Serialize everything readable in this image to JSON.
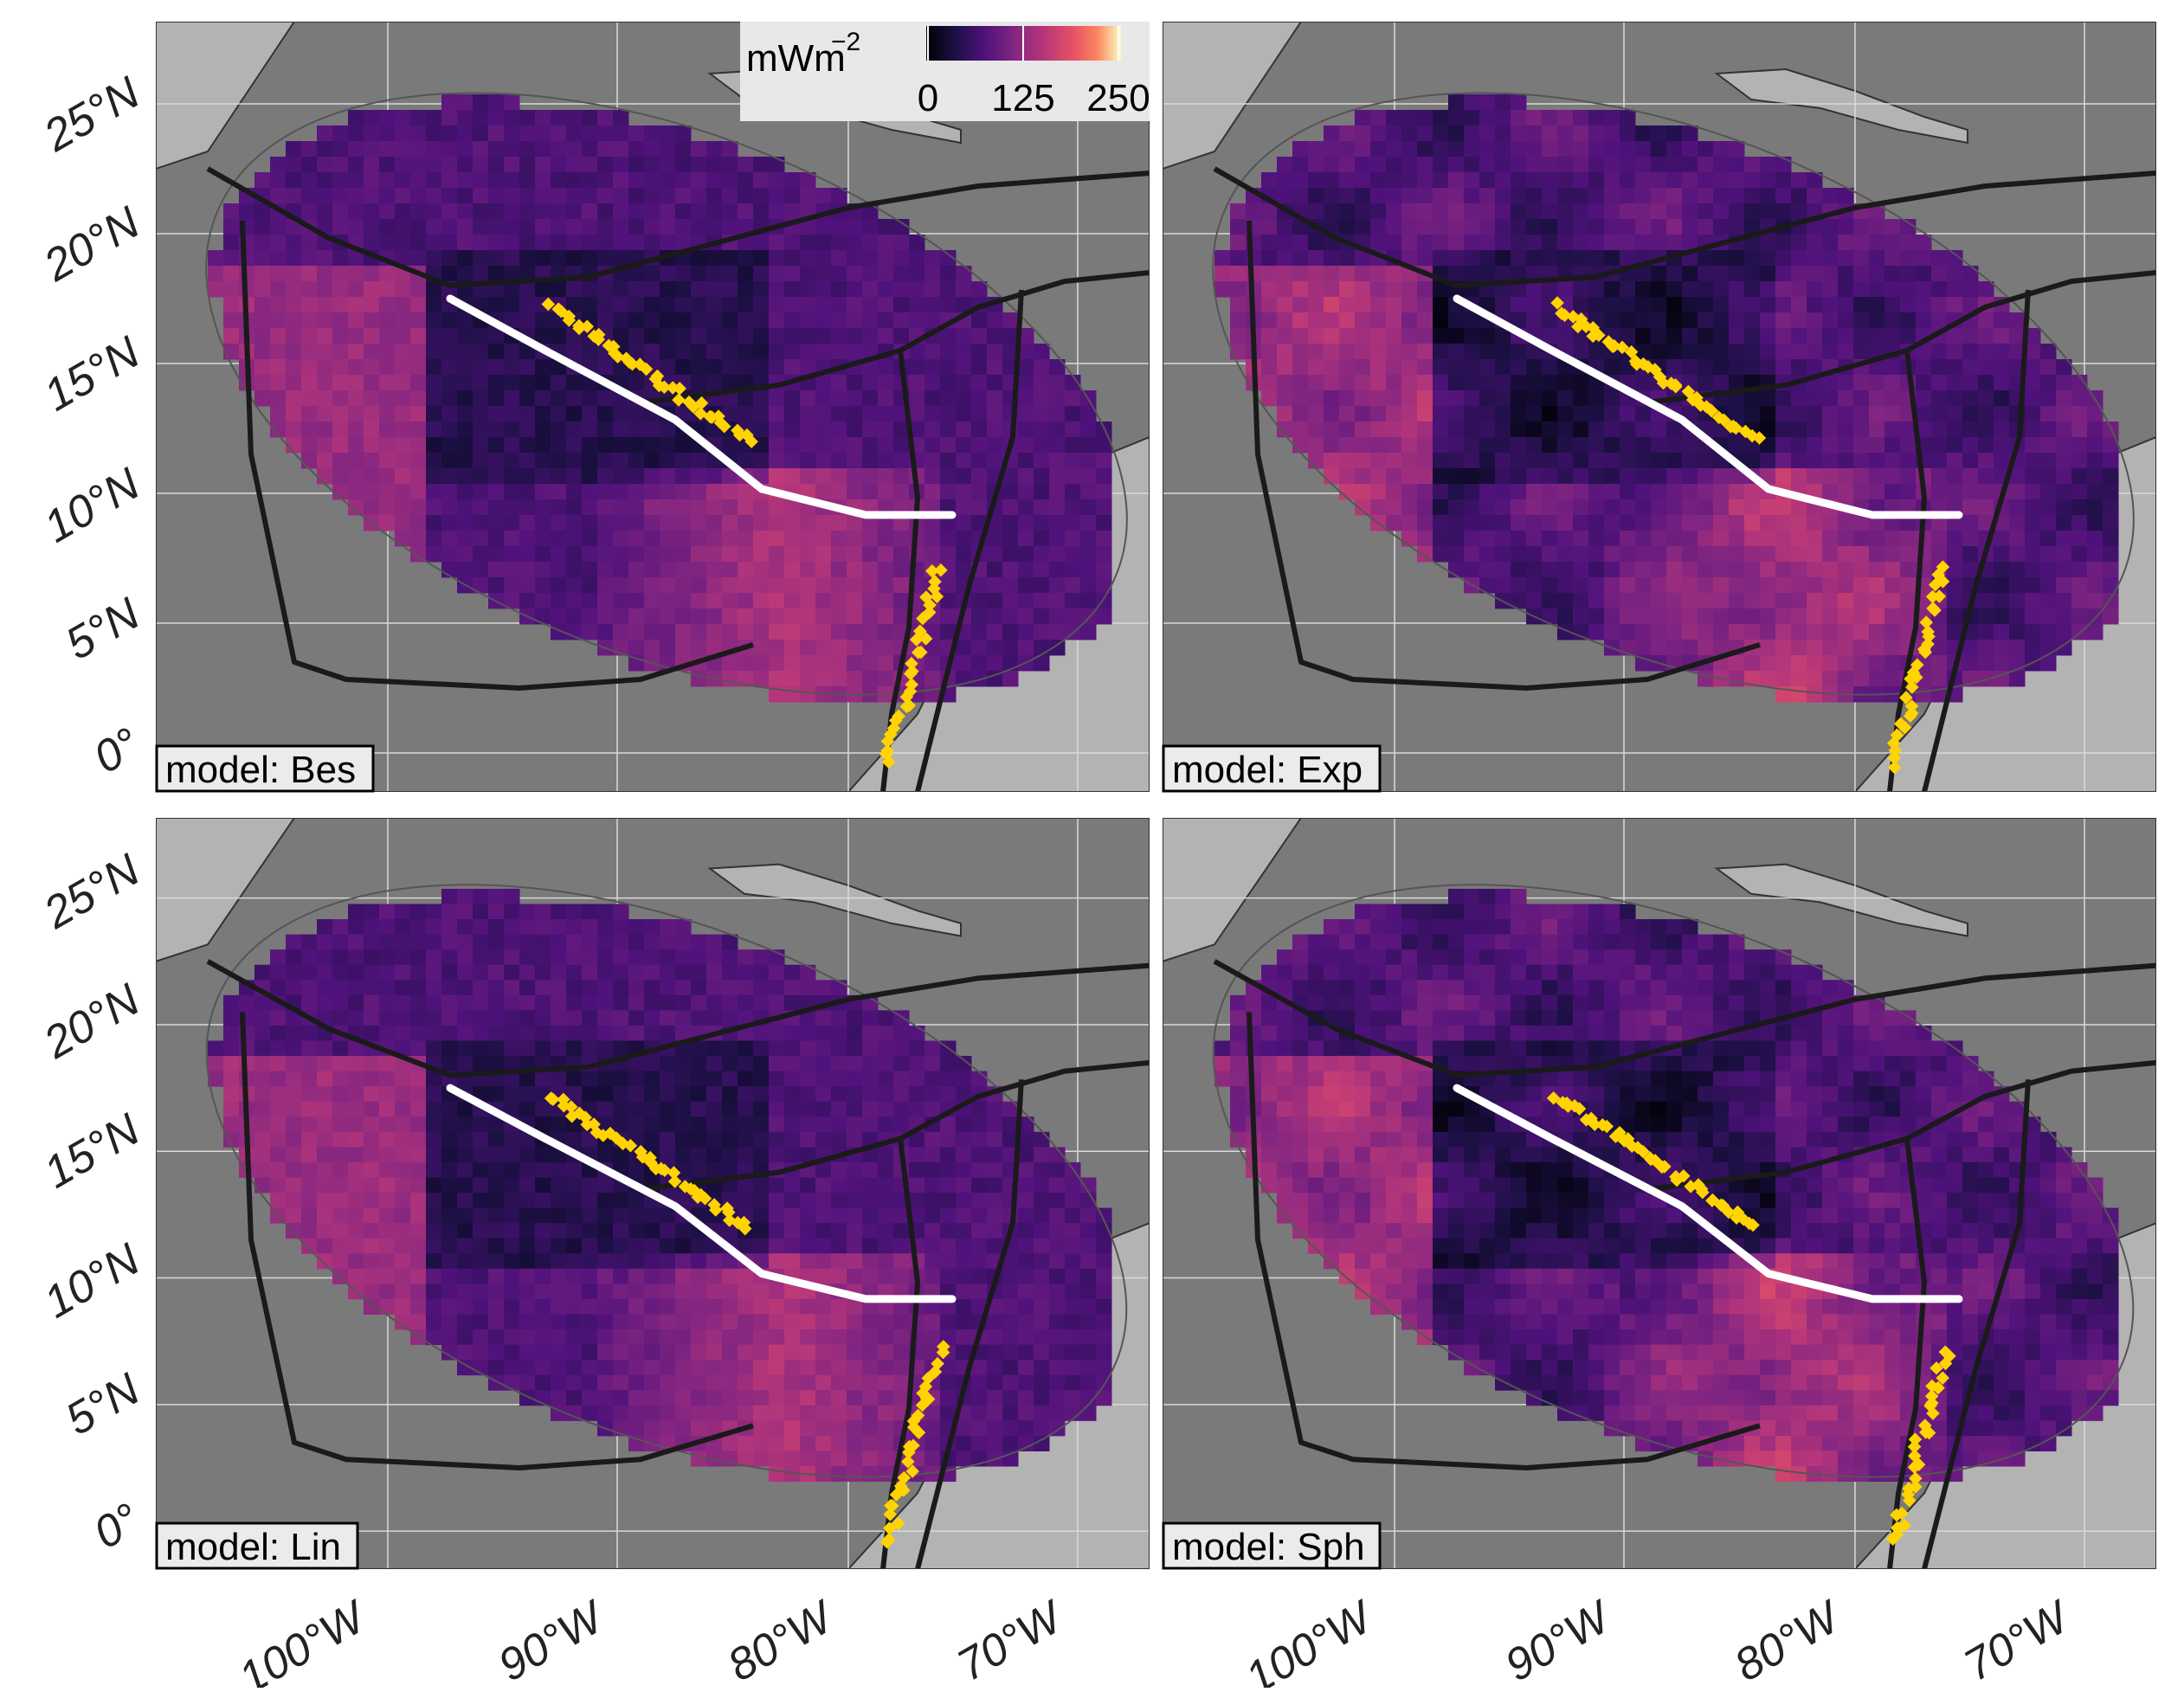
{
  "figure": {
    "y_axis_labels": [
      "25°N",
      "20°N",
      "15°N",
      "10°N",
      "5°N",
      "0°"
    ],
    "x_axis_labels": [
      "100°W",
      "90°W",
      "80°W",
      "70°W"
    ],
    "legend": {
      "title": "mWm",
      "title_exponent": "−2",
      "ticks": [
        "0",
        "125",
        "250"
      ],
      "range": [
        0,
        250
      ],
      "colormap": "magma"
    },
    "panels": [
      {
        "label": "model: Bes",
        "model": "Bes"
      },
      {
        "label": "model: Exp",
        "model": "Exp"
      },
      {
        "label": "model: Lin",
        "model": "Lin"
      },
      {
        "label": "model: Sph",
        "model": "Sph"
      }
    ],
    "colors": {
      "ocean": "#7a7a7a",
      "land": "#b3b3b3",
      "plate_boundary": "#1a1a1a",
      "segment_line": "#ffffff",
      "volcano_points": "#ffd400",
      "graticule": "#d9d9d9"
    }
  }
}
